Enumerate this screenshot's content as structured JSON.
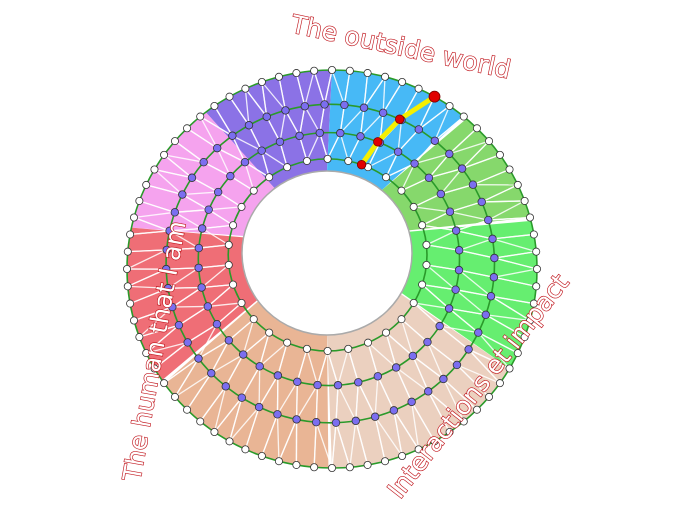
{
  "labels": {
    "top": "The outside world",
    "left": "The human that I am",
    "right": "Interactions et impact"
  },
  "colors": {
    "ring_line": "#2a9a2a",
    "spoke": "#ffffff",
    "node_white": "#ffffff",
    "node_purple": "#7b6ef0",
    "path": "#f5ef00",
    "path_node": "#e00000",
    "label": "#c0151c"
  },
  "sectors": [
    {
      "name": "purple",
      "color": "#8b72e6"
    },
    {
      "name": "pink",
      "color": "#f5a3ee"
    },
    {
      "name": "red",
      "color": "#ef6e76"
    },
    {
      "name": "tan",
      "color": "#e9b595"
    },
    {
      "name": "beige",
      "color": "#ebd0bf"
    },
    {
      "name": "green-light",
      "color": "#66ee70"
    },
    {
      "name": "green",
      "color": "#86d86c"
    },
    {
      "name": "blue",
      "color": "#47b9f6"
    }
  ]
}
